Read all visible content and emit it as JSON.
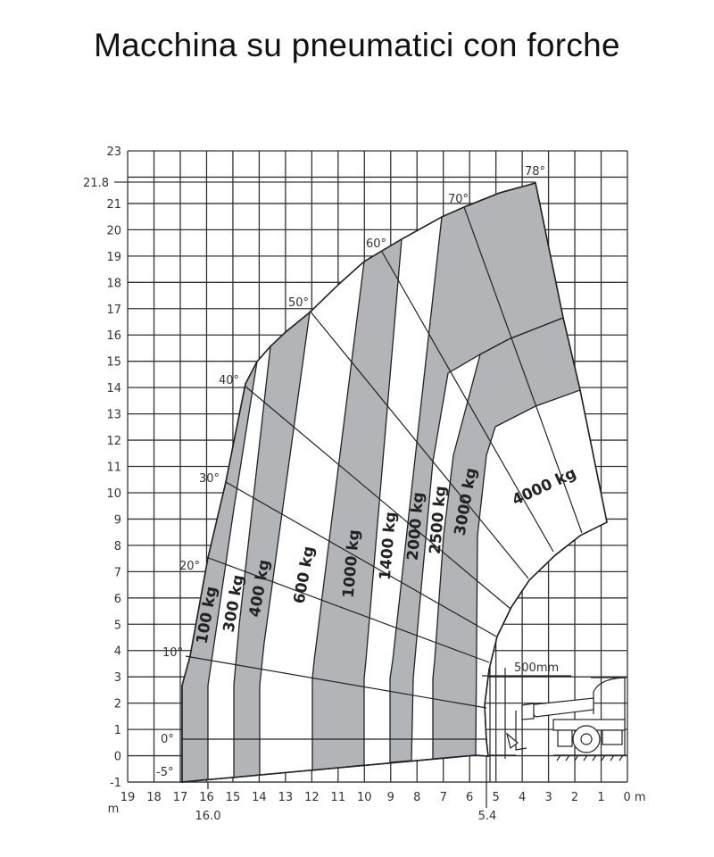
{
  "title": "Macchina su pneumatici con forche",
  "chart_data": {
    "type": "load-chart",
    "x_unit": "m",
    "x_ticks": [
      "19",
      "18",
      "17",
      "16",
      "15",
      "14",
      "13",
      "12",
      "11",
      "10",
      "9",
      "8",
      "7",
      "6",
      "5",
      "4",
      "3",
      "2",
      "1",
      "0 m"
    ],
    "x_extra_labels": {
      "reach_16": "16.0",
      "reach_5_4": "5.4",
      "unit": "m"
    },
    "y_ticks": [
      "23",
      "21",
      "20",
      "19",
      "18",
      "17",
      "16",
      "15",
      "14",
      "13",
      "12",
      "11",
      "10",
      "9",
      "8",
      "7",
      "6",
      "5",
      "4",
      "3",
      "2",
      "1",
      "0",
      "-1"
    ],
    "y_extra_label": "21.8",
    "xlim": [
      19,
      0
    ],
    "ylim": [
      -1,
      23
    ],
    "max_height_m": 21.8,
    "grid": true,
    "angles": [
      "78°",
      "70°",
      "60°",
      "50°",
      "40°",
      "30°",
      "20°",
      "10°",
      "0°",
      "-5°"
    ],
    "load_zones": [
      "100 kg",
      "300 kg",
      "400 kg",
      "600 kg",
      "1000 kg",
      "1400 kg",
      "2000 kg",
      "2500 kg",
      "3000 kg",
      "4000 kg"
    ],
    "dimension_label": "500mm",
    "fill_color": "#b2b4b7"
  }
}
